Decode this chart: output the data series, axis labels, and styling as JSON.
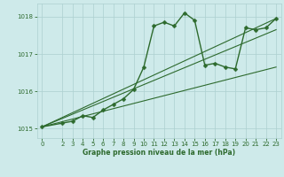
{
  "background_color": "#ceeaea",
  "grid_color": "#acd0d0",
  "line_color": "#2d6a2d",
  "xlabel": "Graphe pression niveau de la mer (hPa)",
  "ylim": [
    1014.75,
    1018.35
  ],
  "xlim": [
    -0.5,
    23.5
  ],
  "yticks": [
    1015,
    1016,
    1017,
    1018
  ],
  "xticks": [
    0,
    2,
    3,
    4,
    5,
    6,
    7,
    8,
    9,
    10,
    11,
    12,
    13,
    14,
    15,
    16,
    17,
    18,
    19,
    20,
    21,
    22,
    23
  ],
  "series": [
    {
      "x": [
        0,
        2,
        3,
        4,
        5,
        6,
        7,
        8,
        9,
        10,
        11,
        12,
        13,
        14,
        15,
        16,
        17,
        18,
        19,
        20,
        21,
        22,
        23
      ],
      "y": [
        1015.05,
        1015.15,
        1015.2,
        1015.35,
        1015.3,
        1015.5,
        1015.65,
        1015.8,
        1016.05,
        1016.65,
        1017.75,
        1017.85,
        1017.75,
        1018.1,
        1017.9,
        1016.7,
        1016.75,
        1016.65,
        1016.6,
        1017.7,
        1017.65,
        1017.7,
        1017.95
      ],
      "marker": "D",
      "markersize": 2.5,
      "linewidth": 1.0,
      "with_marker": true
    },
    {
      "x": [
        0,
        23
      ],
      "y": [
        1015.05,
        1017.95
      ],
      "marker": null,
      "linewidth": 0.9,
      "with_marker": false
    },
    {
      "x": [
        0,
        23
      ],
      "y": [
        1015.05,
        1017.95
      ],
      "marker": null,
      "linewidth": 0.9,
      "with_marker": false
    },
    {
      "x": [
        0,
        23
      ],
      "y": [
        1015.05,
        1017.95
      ],
      "marker": null,
      "linewidth": 0.9,
      "with_marker": false
    }
  ],
  "straight_lines": [
    {
      "x": [
        0,
        23
      ],
      "y": [
        1015.05,
        1017.95
      ]
    },
    {
      "x": [
        0,
        23
      ],
      "y": [
        1015.05,
        1017.65
      ]
    },
    {
      "x": [
        0,
        23
      ],
      "y": [
        1015.05,
        1016.65
      ]
    }
  ]
}
